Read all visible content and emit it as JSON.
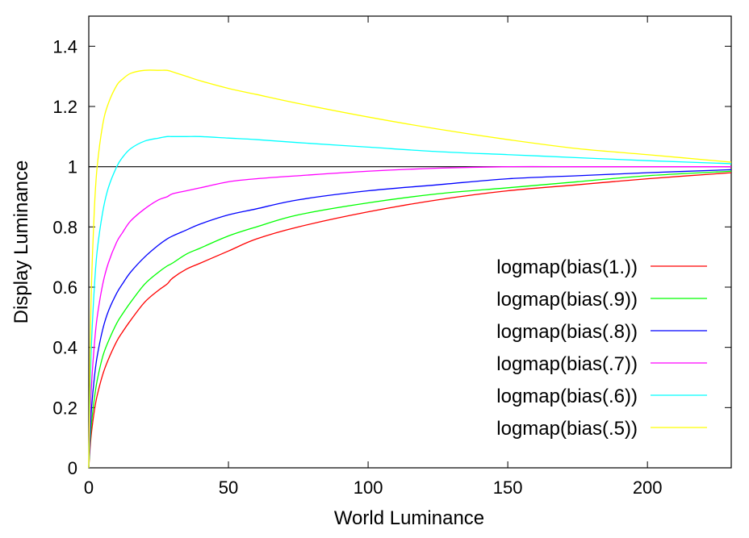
{
  "chart_data": {
    "type": "line",
    "title": "",
    "xlabel": "World Luminance",
    "ylabel": "Display Luminance",
    "xlim": [
      0,
      230
    ],
    "ylim": [
      0,
      1.5
    ],
    "x_ticks": [
      0,
      50,
      100,
      150,
      200
    ],
    "x_tick_labels": [
      "0",
      "50",
      "100",
      "150",
      "200"
    ],
    "y_ticks": [
      0,
      0.2,
      0.4,
      0.6,
      0.8,
      1,
      1.2,
      1.4
    ],
    "y_tick_labels": [
      "0",
      "0.2",
      "0.4",
      "0.6",
      "0.8",
      "1",
      "1.2",
      "1.4"
    ],
    "grid": false,
    "legend_position": "right",
    "reference_line": {
      "y": 1,
      "color": "#000000"
    },
    "x": [
      0,
      0.5,
      1,
      2,
      3,
      5,
      7,
      10,
      12,
      15,
      20,
      25,
      28,
      30,
      35,
      40,
      50,
      60,
      75,
      100,
      125,
      150,
      175,
      200,
      230
    ],
    "series": [
      {
        "name": "logmap(bias(1.))",
        "color": "#ff0000",
        "values": [
          0,
          0.07,
          0.12,
          0.19,
          0.24,
          0.31,
          0.36,
          0.42,
          0.45,
          0.49,
          0.55,
          0.59,
          0.61,
          0.63,
          0.66,
          0.68,
          0.72,
          0.76,
          0.8,
          0.85,
          0.89,
          0.92,
          0.94,
          0.96,
          0.98
        ]
      },
      {
        "name": "logmap(bias(.9))",
        "color": "#00ff00",
        "values": [
          0,
          0.09,
          0.15,
          0.23,
          0.29,
          0.37,
          0.42,
          0.48,
          0.51,
          0.55,
          0.61,
          0.65,
          0.67,
          0.68,
          0.71,
          0.73,
          0.77,
          0.8,
          0.84,
          0.88,
          0.91,
          0.93,
          0.95,
          0.97,
          0.985
        ]
      },
      {
        "name": "logmap(bias(.8))",
        "color": "#0000ff",
        "values": [
          0,
          0.12,
          0.2,
          0.3,
          0.37,
          0.46,
          0.52,
          0.58,
          0.61,
          0.65,
          0.7,
          0.74,
          0.76,
          0.77,
          0.79,
          0.81,
          0.84,
          0.86,
          0.89,
          0.92,
          0.94,
          0.96,
          0.97,
          0.98,
          0.99
        ]
      },
      {
        "name": "logmap(bias(.7))",
        "color": "#ff00ff",
        "values": [
          0,
          0.17,
          0.28,
          0.41,
          0.5,
          0.61,
          0.68,
          0.75,
          0.78,
          0.82,
          0.86,
          0.89,
          0.9,
          0.91,
          0.92,
          0.93,
          0.95,
          0.96,
          0.97,
          0.985,
          0.995,
          1.0,
          1.0,
          1.0,
          1.0
        ]
      },
      {
        "name": "logmap(bias(.6))",
        "color": "#00ffff",
        "values": [
          0,
          0.26,
          0.42,
          0.6,
          0.72,
          0.85,
          0.93,
          1.0,
          1.03,
          1.06,
          1.085,
          1.095,
          1.1,
          1.1,
          1.1,
          1.1,
          1.095,
          1.09,
          1.08,
          1.065,
          1.05,
          1.04,
          1.03,
          1.02,
          1.01
        ]
      },
      {
        "name": "logmap(bias(.5))",
        "color": "#ffff00",
        "values": [
          0,
          0.4,
          0.62,
          0.86,
          1.0,
          1.14,
          1.21,
          1.27,
          1.29,
          1.31,
          1.32,
          1.32,
          1.32,
          1.315,
          1.3,
          1.285,
          1.26,
          1.24,
          1.21,
          1.165,
          1.125,
          1.09,
          1.06,
          1.04,
          1.015
        ]
      }
    ]
  }
}
